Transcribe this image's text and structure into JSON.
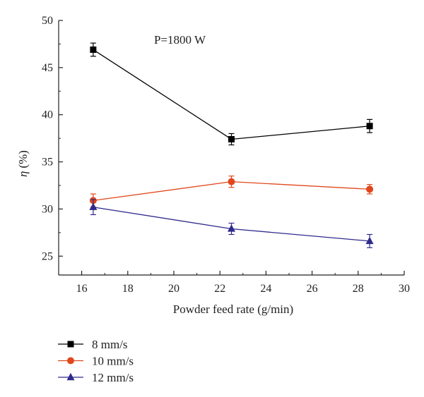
{
  "chart_data": {
    "type": "line",
    "title": "",
    "annotation": "P=1800 W",
    "xlabel": "Powder feed rate (g/min)",
    "ylabel_symbol": "η",
    "ylabel_unit": "(%)",
    "xlim": [
      15,
      30
    ],
    "ylim": [
      23,
      50
    ],
    "xticks": [
      16,
      18,
      20,
      22,
      24,
      26,
      28,
      30
    ],
    "yticks": [
      25,
      30,
      35,
      40,
      45,
      50
    ],
    "x": [
      16.5,
      22.5,
      28.5
    ],
    "series": [
      {
        "name": "8 mm/s",
        "marker": "square",
        "color": "#000000",
        "values": [
          46.9,
          37.4,
          38.8
        ],
        "errors": [
          0.7,
          0.6,
          0.7
        ]
      },
      {
        "name": "10 mm/s",
        "marker": "circle",
        "color": "#e0481c",
        "values": [
          30.9,
          32.9,
          32.1
        ],
        "errors": [
          0.7,
          0.6,
          0.5
        ]
      },
      {
        "name": "12 mm/s",
        "marker": "triangle",
        "color": "#2e2a8c",
        "values": [
          30.2,
          27.9,
          26.6
        ],
        "errors": [
          0.8,
          0.6,
          0.7
        ]
      }
    ],
    "grid": false,
    "legend_position": "bottom-left"
  }
}
